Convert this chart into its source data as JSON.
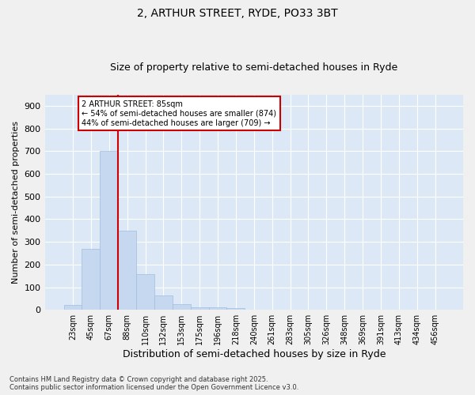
{
  "title_line1": "2, ARTHUR STREET, RYDE, PO33 3BT",
  "title_line2": "Size of property relative to semi-detached houses in Ryde",
  "xlabel": "Distribution of semi-detached houses by size in Ryde",
  "ylabel": "Number of semi-detached properties",
  "categories": [
    "23sqm",
    "45sqm",
    "67sqm",
    "88sqm",
    "110sqm",
    "132sqm",
    "153sqm",
    "175sqm",
    "196sqm",
    "218sqm",
    "240sqm",
    "261sqm",
    "283sqm",
    "305sqm",
    "326sqm",
    "348sqm",
    "369sqm",
    "391sqm",
    "413sqm",
    "434sqm",
    "456sqm"
  ],
  "values": [
    20,
    270,
    700,
    350,
    158,
    65,
    25,
    10,
    10,
    7,
    0,
    0,
    0,
    0,
    0,
    0,
    0,
    0,
    0,
    0,
    0
  ],
  "bar_color": "#c5d8f0",
  "bar_edge_color": "#a0bede",
  "vline_color": "#cc0000",
  "ylim": [
    0,
    950
  ],
  "yticks": [
    0,
    100,
    200,
    300,
    400,
    500,
    600,
    700,
    800,
    900
  ],
  "annotation_text": "2 ARTHUR STREET: 85sqm\n← 54% of semi-detached houses are smaller (874)\n44% of semi-detached houses are larger (709) →",
  "annotation_box_color": "#cc0000",
  "footnote": "Contains HM Land Registry data © Crown copyright and database right 2025.\nContains public sector information licensed under the Open Government Licence v3.0.",
  "background_color": "#dce8f5",
  "grid_color": "#ffffff",
  "fig_background": "#f0f0f0",
  "title_fontsize": 10,
  "subtitle_fontsize": 9,
  "tick_fontsize": 7,
  "label_fontsize": 9,
  "footnote_fontsize": 6
}
